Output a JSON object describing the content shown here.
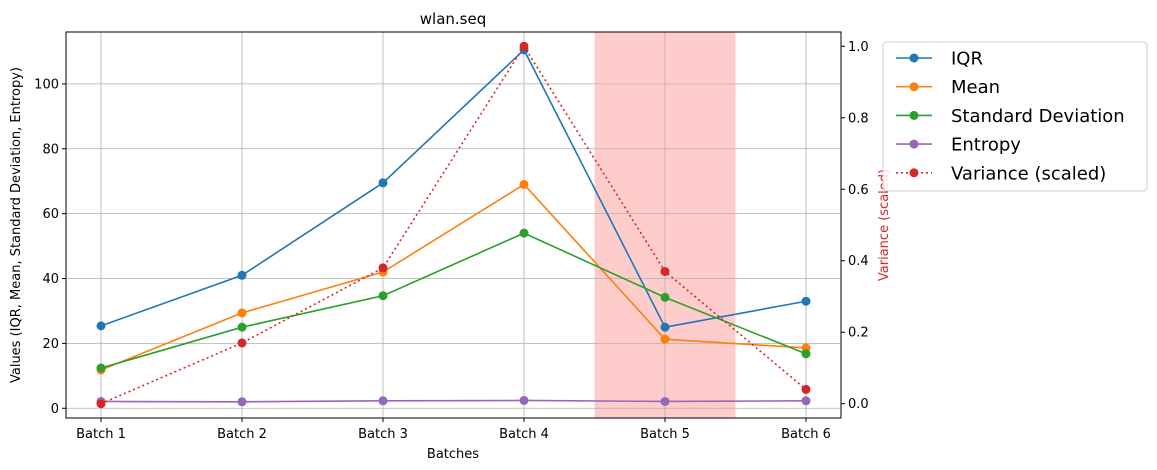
{
  "chart_data": {
    "type": "line",
    "title": "wlan.seq",
    "xlabel": "Batches",
    "ylabel": "Values (IQR, Mean, Standard Deviation, Entropy)",
    "y2label": "Variance (scaled)",
    "categories": [
      "Batch 1",
      "Batch 2",
      "Batch 3",
      "Batch 4",
      "Batch 5",
      "Batch 6"
    ],
    "ylim": [
      -3,
      116
    ],
    "yticks": [
      0,
      20,
      40,
      60,
      80,
      100
    ],
    "y2lim": [
      -0.04,
      1.04
    ],
    "y2ticks": [
      0.0,
      0.2,
      0.4,
      0.6,
      0.8,
      1.0
    ],
    "y2ticklabels": [
      "0.0",
      "0.2",
      "0.4",
      "0.6",
      "0.8",
      "1.0"
    ],
    "grid": true,
    "legend_position": "outside-right-top",
    "highlight": {
      "category": "Batch 5",
      "color": "#ff9999"
    },
    "series": [
      {
        "name": "IQR",
        "axis": "left",
        "color": "#1f77b4",
        "style": "solid",
        "values": [
          25.4,
          41.0,
          69.5,
          110.5,
          25.0,
          33.0
        ]
      },
      {
        "name": "Mean",
        "axis": "left",
        "color": "#ff7f0e",
        "style": "solid",
        "values": [
          11.8,
          29.4,
          42.0,
          69.0,
          21.3,
          18.6
        ]
      },
      {
        "name": "Standard Deviation",
        "axis": "left",
        "color": "#2ca02c",
        "style": "solid",
        "values": [
          12.4,
          25.0,
          34.7,
          54.0,
          34.2,
          16.8
        ]
      },
      {
        "name": "Entropy",
        "axis": "left",
        "color": "#9467bd",
        "style": "solid",
        "values": [
          2.1,
          2.0,
          2.3,
          2.4,
          2.1,
          2.3
        ]
      },
      {
        "name": "Variance (scaled)",
        "axis": "right",
        "color": "#d62728",
        "style": "dotted",
        "values": [
          0.0,
          0.17,
          0.38,
          1.0,
          0.37,
          0.04
        ]
      }
    ]
  }
}
